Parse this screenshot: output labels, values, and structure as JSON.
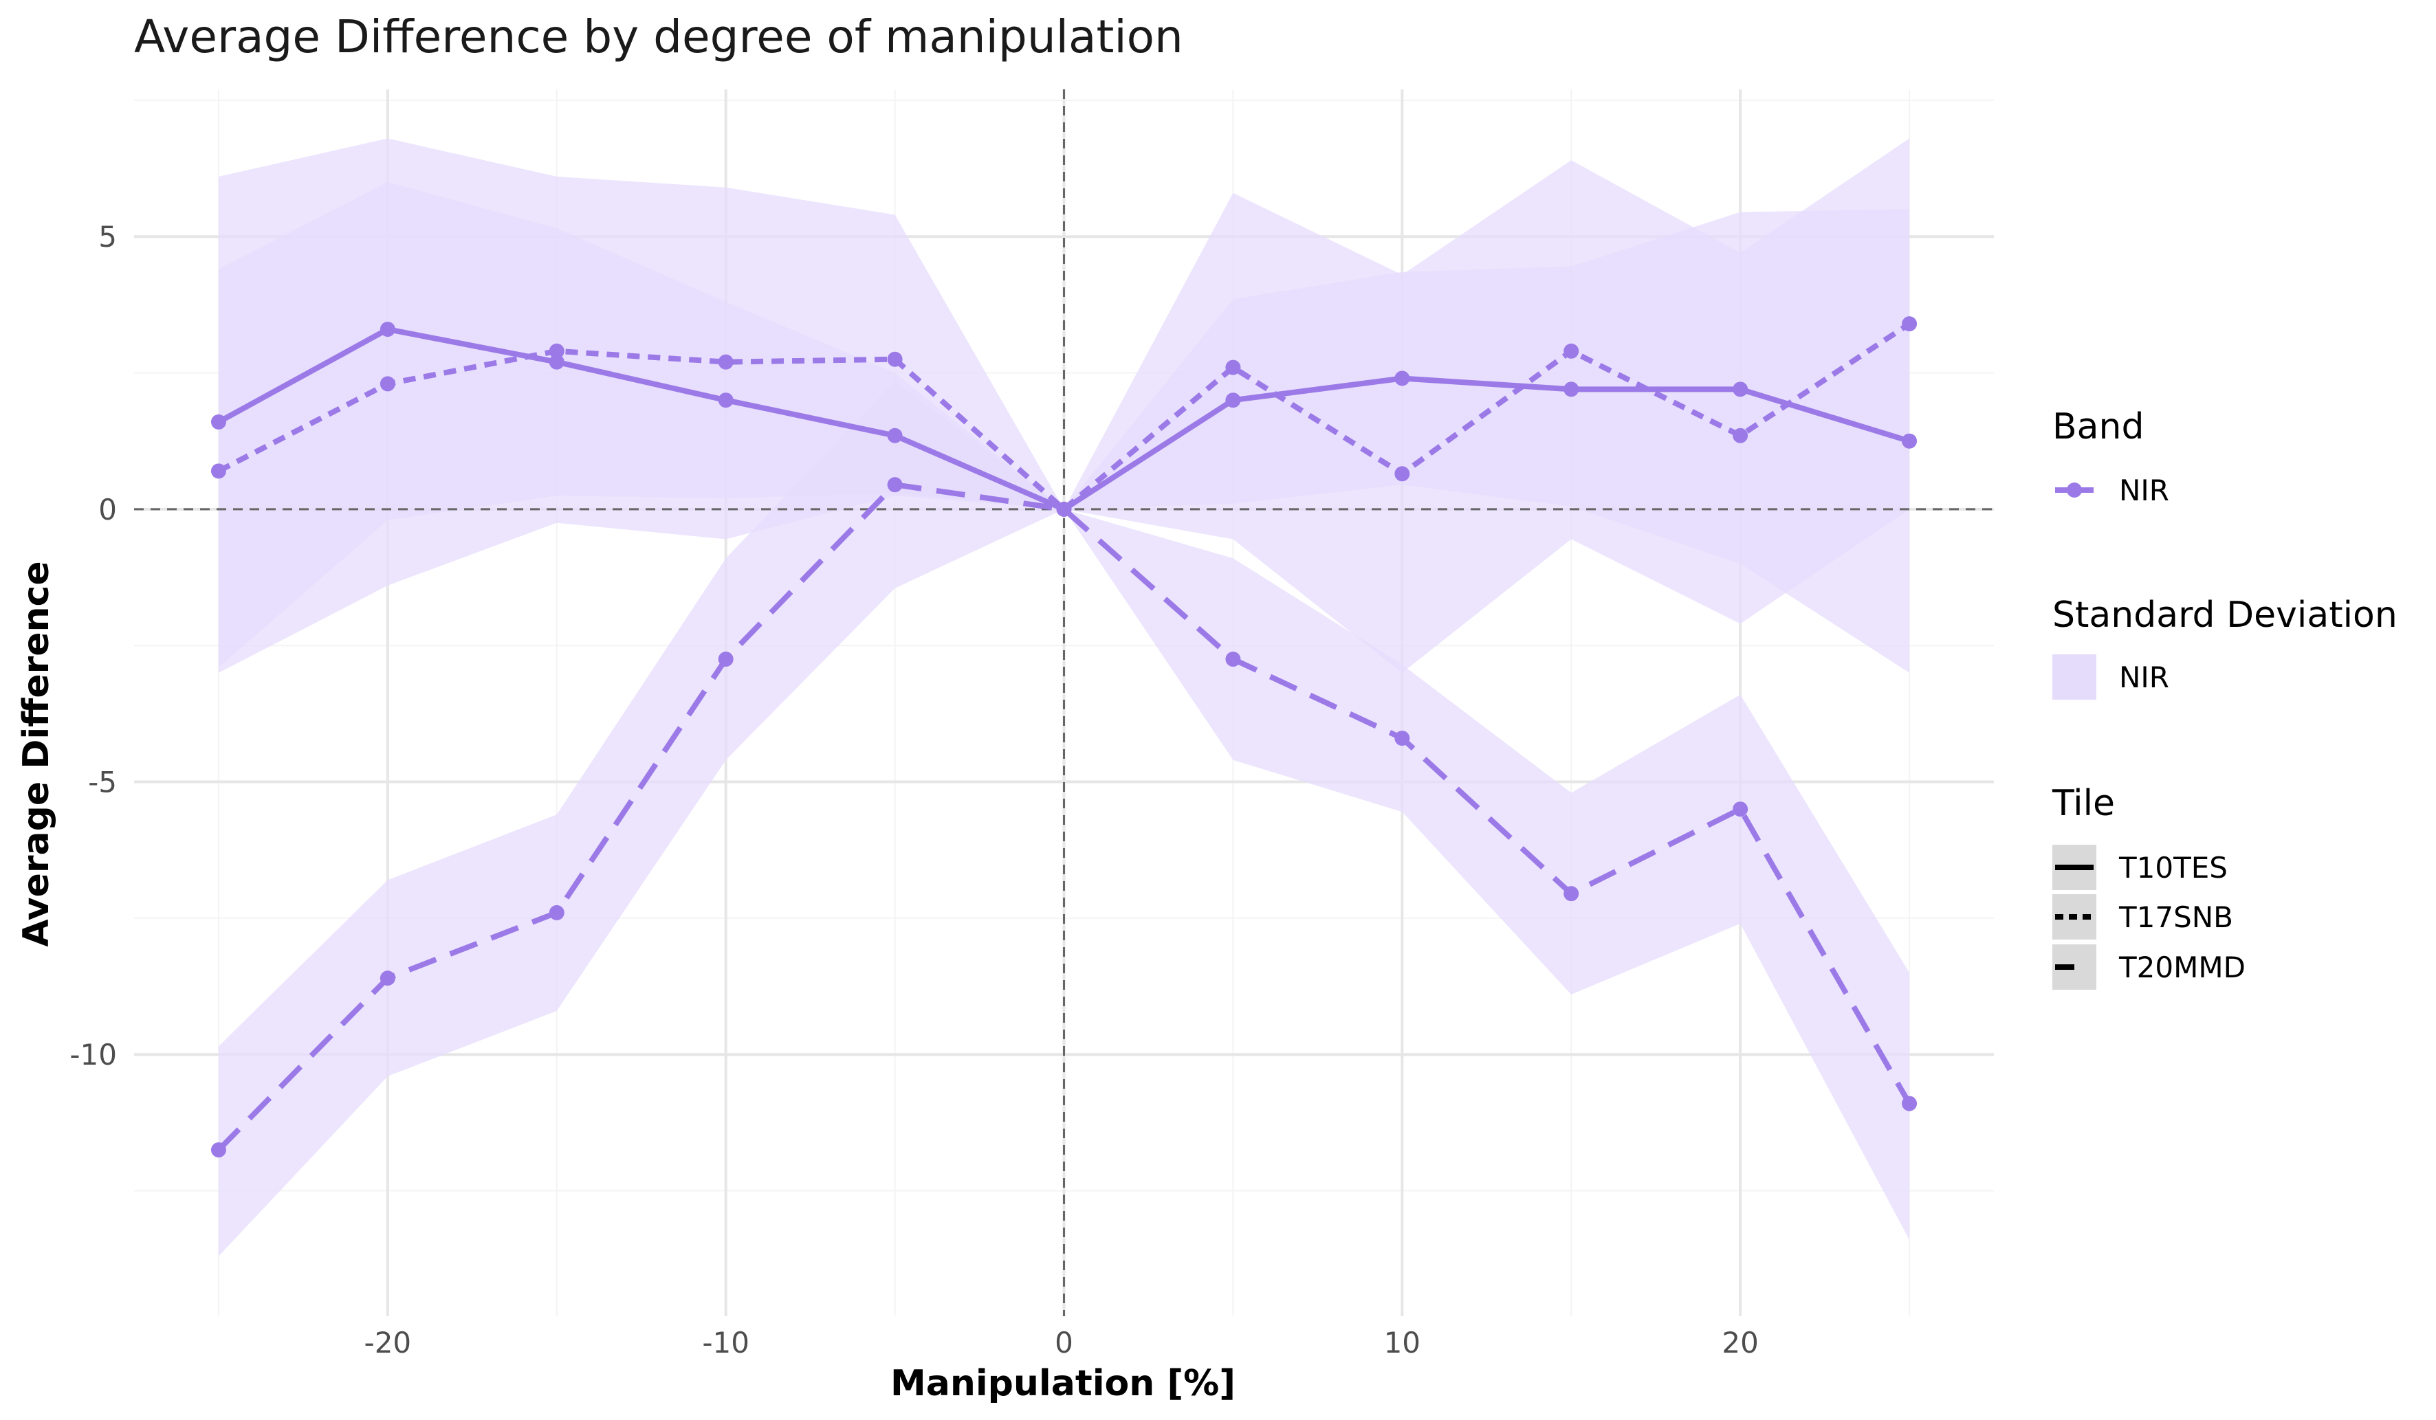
{
  "chart_data": {
    "type": "line",
    "title": "Average Difference by degree of manipulation",
    "xlabel": "Manipulation [%]",
    "ylabel": "Average Difference",
    "xlim": [
      -27.5,
      27.5
    ],
    "ylim": [
      -14.8,
      7.7
    ],
    "x_ticks": [
      -20,
      -10,
      0,
      10,
      20
    ],
    "y_ticks": [
      5,
      0,
      -5,
      -10
    ],
    "x_tick_labels": [
      "-20",
      "-10",
      "0",
      "10",
      "20"
    ],
    "y_tick_labels": [
      "5",
      "0",
      "-5",
      "-10"
    ],
    "reference_lines": {
      "x": 0,
      "y": 0,
      "style": "dashed"
    },
    "grid": true,
    "legend_position": "right",
    "color": "#9b7ae8",
    "band_color": "#e5dcfc",
    "x": [
      -25,
      -20,
      -15,
      -10,
      -5,
      0,
      5,
      10,
      15,
      20,
      25
    ],
    "series": [
      {
        "tile": "T10TES",
        "band": "NIR",
        "linetype": "solid",
        "values": [
          1.6,
          3.3,
          2.7,
          2.0,
          1.35,
          0.0,
          2.0,
          2.4,
          2.2,
          2.2,
          1.25
        ],
        "sd_lower": [
          -2.9,
          -0.2,
          0.25,
          0.2,
          0.3,
          0.0,
          0.1,
          0.45,
          0.05,
          -1.0,
          -3.0
        ],
        "sd_upper": [
          6.1,
          6.8,
          6.1,
          5.9,
          5.4,
          0.0,
          5.8,
          4.3,
          6.4,
          4.7,
          6.8
        ]
      },
      {
        "tile": "T17SNB",
        "band": "NIR",
        "linetype": "dotted",
        "values": [
          0.7,
          2.3,
          2.9,
          2.7,
          2.75,
          0.0,
          2.6,
          0.65,
          2.9,
          1.35,
          3.4
        ],
        "sd_lower": [
          -3.0,
          -1.4,
          -0.25,
          -0.55,
          0.25,
          0.0,
          -0.55,
          -3.0,
          -0.55,
          -2.1,
          0.0
        ],
        "sd_upper": [
          4.4,
          6.0,
          5.15,
          3.8,
          2.5,
          0.0,
          3.85,
          4.35,
          4.45,
          5.45,
          5.5
        ]
      },
      {
        "tile": "T20MMD",
        "band": "NIR",
        "linetype": "dashed",
        "values": [
          -11.75,
          -8.6,
          -7.4,
          -2.75,
          0.45,
          0.0,
          -2.75,
          -4.2,
          -7.05,
          -5.5,
          -10.9
        ],
        "sd_lower": [
          -13.7,
          -10.4,
          -9.2,
          -4.6,
          -1.45,
          0.0,
          -4.6,
          -5.55,
          -8.9,
          -7.6,
          -13.4
        ],
        "sd_upper": [
          -9.85,
          -6.8,
          -5.6,
          -0.9,
          2.35,
          0.0,
          -0.9,
          -2.85,
          -5.2,
          -3.4,
          -8.5
        ]
      }
    ],
    "legend": {
      "band": {
        "title": "Band",
        "entries": [
          "NIR"
        ]
      },
      "sd": {
        "title": "Standard Deviation",
        "entries": [
          "NIR"
        ]
      },
      "tile": {
        "title": "Tile",
        "entries": [
          "T10TES",
          "T17SNB",
          "T20MMD"
        ]
      }
    }
  }
}
